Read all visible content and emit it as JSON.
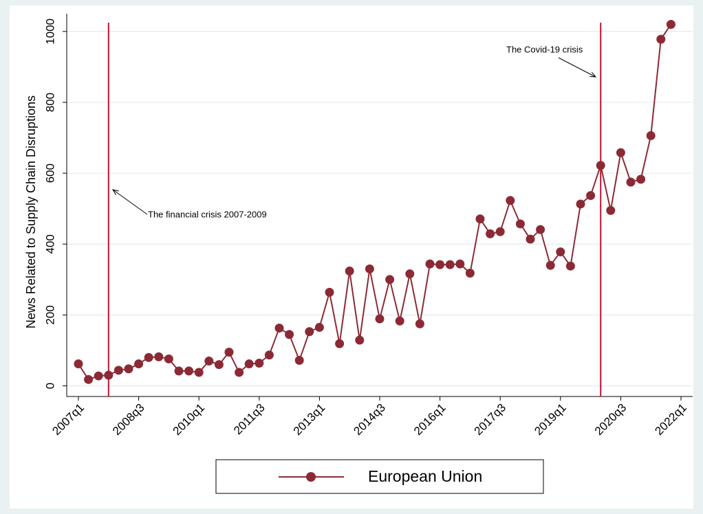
{
  "chart_data": {
    "type": "line",
    "y_label": "News Related to Supply Chain Disruptions",
    "categories": [
      "2007q1",
      null,
      null,
      null,
      null,
      null,
      "2008q3",
      null,
      null,
      null,
      null,
      null,
      "2010q1",
      null,
      null,
      null,
      null,
      null,
      "2011q3",
      null,
      null,
      null,
      null,
      null,
      "2013q1",
      null,
      null,
      null,
      null,
      null,
      "2014q3",
      null,
      null,
      null,
      null,
      null,
      "2016q1",
      null,
      null,
      null,
      null,
      null,
      "2017q3",
      null,
      null,
      null,
      null,
      null,
      "2019q1",
      null,
      null,
      null,
      null,
      null,
      "2020q3",
      null,
      null,
      null,
      null,
      null,
      "2022q1"
    ],
    "series": [
      {
        "name": "European Union",
        "color": "#8b2a35",
        "values": [
          62,
          18,
          28,
          30,
          44,
          48,
          62,
          80,
          82,
          76,
          42,
          42,
          38,
          70,
          60,
          95,
          38,
          62,
          64,
          87,
          163,
          145,
          72,
          153,
          165,
          264,
          119,
          324,
          129,
          330,
          189,
          300,
          183,
          316,
          175,
          344,
          342,
          342,
          344,
          318,
          471,
          429,
          435,
          523,
          457,
          414,
          441,
          340,
          378,
          338,
          513,
          537,
          622,
          495,
          658,
          575,
          583,
          706,
          978,
          1020,
          null
        ]
      }
    ],
    "ylim": [
      -30,
      1050
    ],
    "yticks": [
      0,
      200,
      400,
      600,
      800,
      1000
    ],
    "grid": true,
    "vlines": [
      3,
      52
    ],
    "vline_color": "#c8102e",
    "annotations": [
      "The financial crisis 2007-2009",
      "The Covid-19 crisis"
    ],
    "legend": "bottom"
  }
}
